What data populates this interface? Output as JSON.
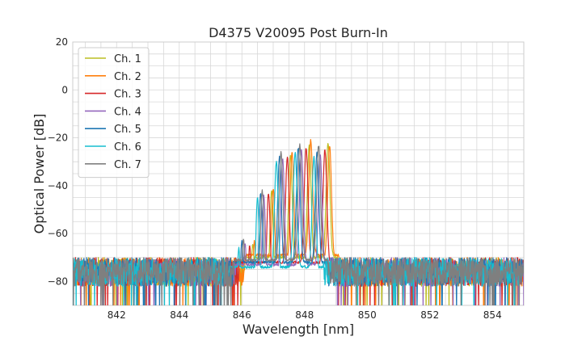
{
  "chart_data": {
    "type": "line",
    "title": "D4375 V20095 Post Burn-In",
    "xlabel": "Wavelength [nm]",
    "ylabel": "Optical Power [dB]",
    "xlim": [
      840.6,
      855.0
    ],
    "ylim": [
      -90,
      20
    ],
    "xticks": [
      842,
      844,
      846,
      848,
      850,
      852,
      854
    ],
    "yticks": [
      20,
      0,
      -20,
      -40,
      -60,
      -80
    ],
    "x_minor_step": 0.5,
    "y_minor_step": 5,
    "grid": true,
    "legend_position": "top-left",
    "noise_floor": {
      "mean": -76,
      "band": 6,
      "dropouts_to": -90
    },
    "series": [
      {
        "name": "Ch. 1",
        "color": "#bcbd22",
        "offset": 0.0,
        "left_edge": 846.05,
        "right_edge": 849.05,
        "peaks": [
          [
            846.35,
            -64
          ],
          [
            846.95,
            -42
          ],
          [
            847.55,
            -27
          ],
          [
            848.15,
            -23
          ],
          [
            848.75,
            -22
          ]
        ]
      },
      {
        "name": "Ch. 2",
        "color": "#ff7f0e",
        "offset": 0.05,
        "left_edge": 846.1,
        "right_edge": 849.1,
        "peaks": [
          [
            846.4,
            -63
          ],
          [
            847.0,
            -41
          ],
          [
            847.6,
            -26
          ],
          [
            848.2,
            -21
          ],
          [
            848.8,
            -23
          ]
        ]
      },
      {
        "name": "Ch. 3",
        "color": "#d62728",
        "offset": -0.1,
        "left_edge": 845.95,
        "right_edge": 848.95,
        "peaks": [
          [
            846.25,
            -65
          ],
          [
            846.85,
            -43
          ],
          [
            847.45,
            -28
          ],
          [
            848.05,
            -24
          ],
          [
            848.65,
            -25
          ]
        ]
      },
      {
        "name": "Ch. 4",
        "color": "#9467bd",
        "offset": -0.25,
        "left_edge": 845.8,
        "right_edge": 848.8,
        "peaks": [
          [
            846.1,
            -64
          ],
          [
            846.7,
            -44
          ],
          [
            847.3,
            -29
          ],
          [
            847.9,
            -25
          ],
          [
            848.5,
            -27
          ]
        ]
      },
      {
        "name": "Ch. 5",
        "color": "#1f77b4",
        "offset": -0.35,
        "left_edge": 845.7,
        "right_edge": 848.7,
        "peaks": [
          [
            846.0,
            -63
          ],
          [
            846.6,
            -43
          ],
          [
            847.2,
            -28
          ],
          [
            847.8,
            -24
          ],
          [
            848.4,
            -26
          ]
        ]
      },
      {
        "name": "Ch. 6",
        "color": "#17becf",
        "offset": -0.45,
        "left_edge": 845.6,
        "right_edge": 848.6,
        "peaks": [
          [
            845.9,
            -66
          ],
          [
            846.5,
            -45
          ],
          [
            847.1,
            -30
          ],
          [
            847.7,
            -26
          ],
          [
            848.3,
            -28
          ]
        ]
      },
      {
        "name": "Ch. 7",
        "color": "#7f7f7f",
        "offset": -0.3,
        "left_edge": 845.75,
        "right_edge": 848.75,
        "peaks": [
          [
            846.05,
            -62
          ],
          [
            846.65,
            -42
          ],
          [
            847.25,
            -26
          ],
          [
            847.85,
            -23
          ],
          [
            848.45,
            -23
          ]
        ]
      }
    ]
  }
}
